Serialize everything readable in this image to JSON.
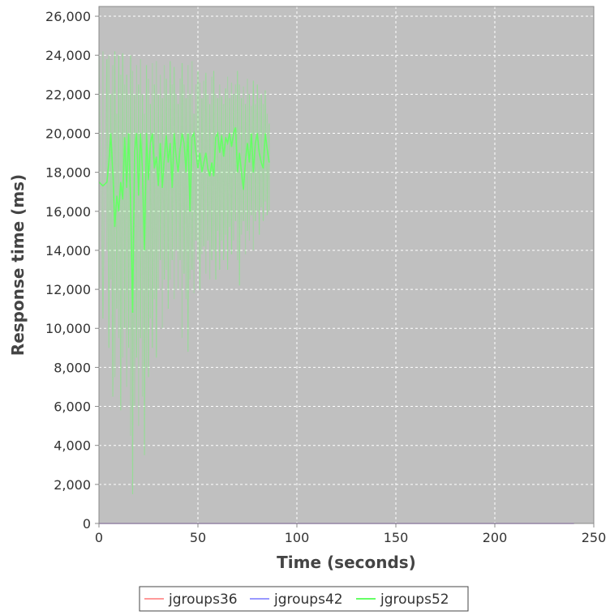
{
  "chart_data": {
    "type": "line",
    "title": "",
    "xlabel": "Time (seconds)",
    "ylabel": "Response time (ms)",
    "xlim": [
      0,
      250
    ],
    "ylim": [
      0,
      26500
    ],
    "x_ticks": [
      0,
      50,
      100,
      150,
      200,
      250
    ],
    "x_tick_labels": [
      "0",
      "50",
      "100",
      "150",
      "200",
      "250"
    ],
    "y_ticks": [
      0,
      2000,
      4000,
      6000,
      8000,
      10000,
      12000,
      14000,
      16000,
      18000,
      20000,
      22000,
      24000,
      26000
    ],
    "y_tick_labels": [
      "0",
      "2,000",
      "4,000",
      "6,000",
      "8,000",
      "10,000",
      "12,000",
      "14,000",
      "16,000",
      "18,000",
      "20,000",
      "22,000",
      "24,000",
      "26,000"
    ],
    "grid": true,
    "legend_position": "bottom",
    "background_color": "#c0c0c0",
    "series": [
      {
        "name": "jgroups36",
        "color": "#ff9999",
        "x": [
          0,
          240
        ],
        "y": [
          0,
          0
        ]
      },
      {
        "name": "jgroups42",
        "color": "#9999ff",
        "x": [
          0,
          240
        ],
        "y": [
          0,
          0
        ]
      },
      {
        "name": "jgroups52",
        "color": "#66ff66",
        "x": [
          0,
          2,
          4,
          5,
          6,
          7,
          8,
          9,
          10,
          11,
          12,
          13,
          14,
          15,
          16,
          17,
          18,
          19,
          20,
          21,
          22,
          23,
          24,
          25,
          26,
          27,
          28,
          29,
          30,
          31,
          32,
          33,
          34,
          35,
          36,
          37,
          38,
          39,
          40,
          41,
          42,
          43,
          44,
          45,
          46,
          47,
          48,
          49,
          50,
          51,
          52,
          53,
          54,
          55,
          56,
          57,
          58,
          59,
          60,
          61,
          62,
          63,
          64,
          65,
          66,
          67,
          68,
          69,
          70,
          71,
          72,
          73,
          74,
          75,
          76,
          77,
          78,
          79,
          80,
          81,
          82,
          83,
          84,
          85,
          86
        ],
        "y": [
          17500,
          17300,
          17500,
          18500,
          20000,
          18000,
          15200,
          16800,
          16000,
          17500,
          16600,
          19800,
          17200,
          20000,
          16500,
          10800,
          19000,
          20000,
          16800,
          20000,
          18000,
          14000,
          20000,
          17600,
          19500,
          20000,
          18200,
          18800,
          17300,
          19500,
          17200,
          18700,
          19900,
          18500,
          19500,
          17200,
          20000,
          18800,
          18000,
          19200,
          20000,
          19500,
          18000,
          20000,
          16000,
          19800,
          20000,
          19000,
          18200,
          19000,
          18000,
          18500,
          19000,
          18200,
          17800,
          18500,
          17800,
          19800,
          20000,
          19000,
          19900,
          18800,
          19800,
          19500,
          20000,
          19300,
          20000,
          20300,
          18000,
          19000,
          18000,
          17100,
          18600,
          19500,
          18500,
          20000,
          18000,
          19500,
          20000,
          19000,
          18500,
          18200,
          20000,
          19200,
          18500
        ],
        "y_upper": [
          24000,
          24200,
          23800,
          24000,
          22000,
          23500,
          24200,
          21000,
          24000,
          23000,
          24100,
          22500,
          23000,
          22000,
          24000,
          23200,
          22000,
          23500,
          22500,
          23800,
          22000,
          21000,
          23500,
          22800,
          21500,
          23600,
          22500,
          23700,
          22000,
          23000,
          21800,
          23500,
          22800,
          22000,
          23700,
          22500,
          23400,
          22000,
          21500,
          22800,
          23600,
          22500,
          21800,
          23500,
          22000,
          23700,
          21000,
          22500,
          23200,
          22600,
          21800,
          22700,
          23100,
          22000,
          21500,
          22900,
          23200,
          22000,
          21800,
          22500,
          21900,
          21500,
          22300,
          22900,
          21800,
          22600,
          22000,
          22500,
          23200,
          22500,
          21800,
          22400,
          21500,
          22800,
          22000,
          21400,
          22700,
          21500,
          22500,
          21800,
          22000,
          21500,
          22200,
          21000,
          20500
        ],
        "y_lower": [
          12000,
          10500,
          14000,
          9000,
          12500,
          6500,
          7500,
          11000,
          9500,
          5800,
          8500,
          10000,
          7000,
          9000,
          4500,
          1500,
          6000,
          8500,
          5000,
          9500,
          6500,
          3500,
          8000,
          7500,
          10500,
          9000,
          11500,
          8500,
          12000,
          13500,
          10000,
          12500,
          13000,
          11000,
          12500,
          13500,
          11500,
          14000,
          12000,
          13500,
          9500,
          12800,
          11500,
          8800,
          12500,
          13000,
          11800,
          14500,
          13500,
          12000,
          13800,
          14200,
          12800,
          14500,
          12500,
          13500,
          14000,
          12500,
          15000,
          13000,
          14500,
          13500,
          14800,
          13000,
          15200,
          13800,
          14500,
          15500,
          13500,
          12200,
          14800,
          15500,
          13800,
          15000,
          14500,
          15800,
          14000,
          15500,
          16000,
          14800,
          16200,
          15500,
          16500,
          15800,
          16000
        ]
      }
    ]
  }
}
